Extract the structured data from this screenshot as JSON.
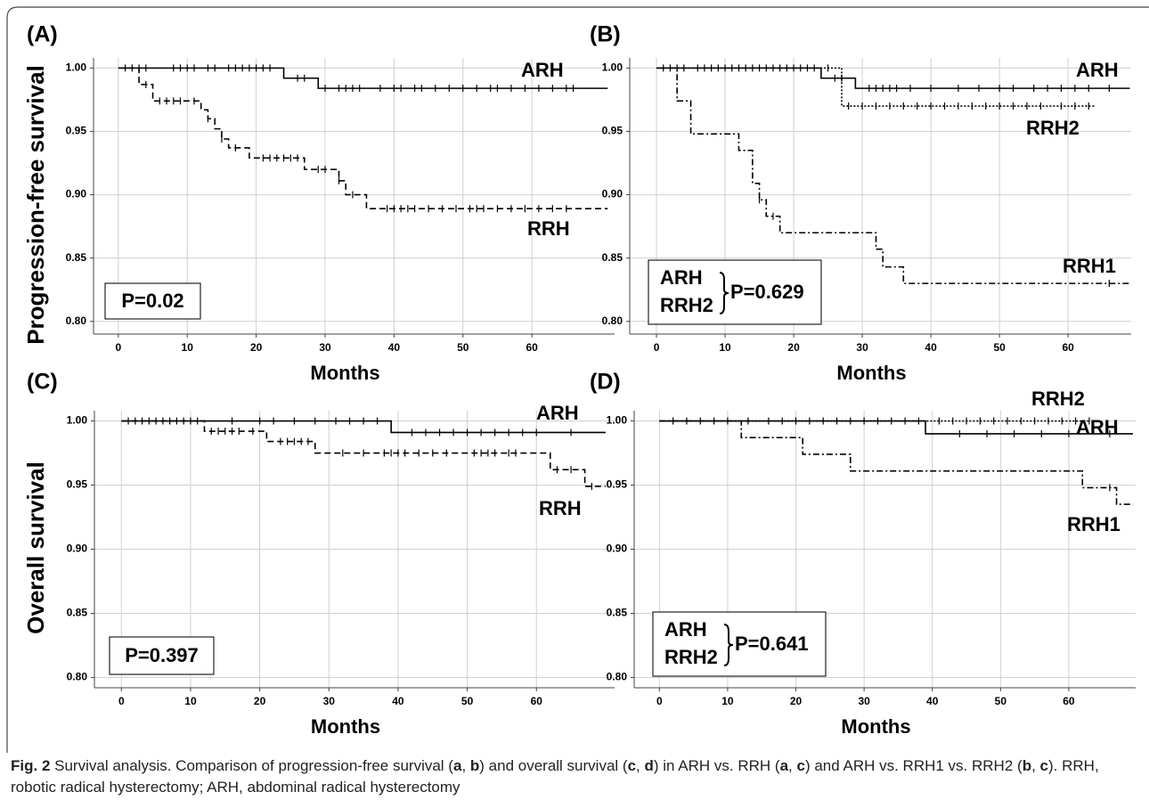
{
  "chart_data": [
    {
      "type": "step",
      "title": "(A)",
      "ylabel": "Progression-free survival",
      "xlabel": "Months",
      "xlim": [
        -3.6,
        72
      ],
      "ylim": [
        0.79,
        1.008
      ],
      "xticks": [
        0,
        10,
        20,
        30,
        40,
        50,
        60
      ],
      "yticks": [
        {
          "value": 0.8,
          "label": "0.80"
        },
        {
          "value": 0.85,
          "label": "0.85"
        },
        {
          "value": 0.9,
          "label": "0.90"
        },
        {
          "value": 0.95,
          "label": "0.95"
        },
        {
          "value": 1,
          "label": "1.00"
        }
      ],
      "grid": true,
      "series": [
        {
          "name": "ARH",
          "color": "#000000",
          "line_style": "solid",
          "x": [
            0,
            24,
            29,
            71
          ],
          "values": [
            1,
            0.992,
            0.984,
            0.984
          ],
          "censored": [
            1,
            2,
            3,
            4,
            8,
            9,
            10,
            11,
            13,
            14,
            16,
            17,
            18,
            19,
            20,
            21,
            22,
            26,
            27,
            30,
            32,
            33,
            34,
            35,
            38,
            40,
            41,
            43,
            44,
            46,
            48,
            50,
            52,
            54,
            55,
            57,
            59,
            61,
            63,
            65,
            66
          ]
        },
        {
          "name": "RRH",
          "color": "#000000",
          "line_style": "dashed",
          "x": [
            0,
            3,
            5,
            12,
            13,
            14,
            15,
            16,
            19,
            27,
            32,
            33,
            36,
            71
          ],
          "values": [
            1,
            0.987,
            0.974,
            0.967,
            0.96,
            0.952,
            0.944,
            0.937,
            0.929,
            0.92,
            0.911,
            0.9,
            0.889,
            0.889
          ],
          "censored": [
            4,
            6,
            7,
            8,
            9,
            11,
            13,
            15,
            17,
            21,
            22,
            23,
            24,
            25,
            26,
            29,
            30,
            32,
            34,
            39,
            40,
            41,
            42,
            43,
            45,
            47,
            49,
            51,
            52,
            53,
            55,
            57,
            59,
            61,
            63,
            65
          ]
        }
      ],
      "annotation": {
        "p": "P=0.02"
      }
    },
    {
      "type": "step",
      "title": "(B)",
      "xlabel": "Months",
      "xlim": [
        -3.9,
        69.2
      ],
      "ylim": [
        0.79,
        1.008
      ],
      "xticks": [
        0,
        10,
        20,
        30,
        40,
        50,
        60
      ],
      "yticks": [
        {
          "value": 0.8,
          "label": "0.80"
        },
        {
          "value": 0.85,
          "label": "0.85"
        },
        {
          "value": 0.9,
          "label": "0.90"
        },
        {
          "value": 0.95,
          "label": "0.95"
        },
        {
          "value": 1,
          "label": "1.00"
        }
      ],
      "grid": true,
      "series": [
        {
          "name": "ARH",
          "color": "#000000",
          "line_style": "solid",
          "x": [
            0,
            24,
            29,
            69
          ],
          "values": [
            1,
            0.992,
            0.984,
            0.984
          ],
          "censored": [
            1,
            2,
            3,
            4,
            6,
            7,
            8,
            9,
            10,
            11,
            12,
            13,
            14,
            15,
            16,
            17,
            18,
            19,
            20,
            21,
            22,
            26,
            27,
            31,
            32,
            33,
            34,
            35,
            37,
            40,
            44,
            47,
            50,
            52,
            55,
            57,
            59,
            61,
            63,
            66
          ]
        },
        {
          "name": "RRH2",
          "color": "#000000",
          "line_style": "dotted",
          "x": [
            0,
            27,
            64
          ],
          "values": [
            1,
            0.97,
            0.97
          ],
          "censored": [
            23,
            25,
            28,
            30,
            32,
            34,
            36,
            38,
            40,
            42,
            44,
            46,
            48,
            50,
            52,
            54,
            56,
            59,
            61,
            63
          ]
        },
        {
          "name": "RRH1",
          "color": "#000000",
          "line_style": "dashdot",
          "x": [
            0,
            3,
            5,
            12,
            14,
            15,
            16,
            18,
            32,
            33,
            36,
            69
          ],
          "values": [
            1,
            0.974,
            0.948,
            0.935,
            0.909,
            0.896,
            0.883,
            0.87,
            0.857,
            0.843,
            0.83,
            0.83
          ],
          "censored": [
            15,
            17,
            66
          ]
        }
      ],
      "annotation": {
        "groups": [
          "ARH",
          "RRH2"
        ],
        "p": "P=0.629"
      }
    },
    {
      "type": "step",
      "title": "(C)",
      "ylabel": "Overall survival",
      "xlabel": "Months",
      "xlim": [
        -3.9,
        71.3
      ],
      "ylim": [
        0.792,
        1.008
      ],
      "xticks": [
        0,
        10,
        20,
        30,
        40,
        50,
        60
      ],
      "yticks": [
        {
          "value": 0.8,
          "label": "0.80"
        },
        {
          "value": 0.85,
          "label": "0.85"
        },
        {
          "value": 0.9,
          "label": "0.90"
        },
        {
          "value": 0.95,
          "label": "0.95"
        },
        {
          "value": 1,
          "label": "1.00"
        }
      ],
      "grid": true,
      "series": [
        {
          "name": "ARH",
          "color": "#000000",
          "line_style": "solid",
          "x": [
            0,
            39,
            70
          ],
          "values": [
            1,
            0.991,
            0.991
          ],
          "censored": [
            1,
            2,
            3,
            4,
            5,
            6,
            7,
            8,
            9,
            10,
            11,
            16,
            20,
            22,
            25,
            28,
            31,
            33,
            35,
            37,
            42,
            44,
            46,
            48,
            50,
            52,
            54,
            56,
            58,
            60,
            65
          ]
        },
        {
          "name": "RRH",
          "color": "#000000",
          "line_style": "dashed",
          "x": [
            0,
            12,
            21,
            28,
            62,
            67,
            70
          ],
          "values": [
            1,
            0.992,
            0.984,
            0.975,
            0.962,
            0.949,
            0.949
          ],
          "censored": [
            13,
            14,
            15,
            16,
            17,
            19,
            23,
            24,
            25,
            26,
            27,
            32,
            35,
            38,
            39,
            40,
            41,
            43,
            45,
            47,
            51,
            52,
            53,
            54,
            56,
            57,
            63,
            65,
            68
          ]
        }
      ],
      "annotation": {
        "p": "P=0.397"
      }
    },
    {
      "type": "step",
      "title": "(D)",
      "xlabel": "Months",
      "xlim": [
        -3.7,
        69.8
      ],
      "ylim": [
        0.792,
        1.008
      ],
      "xticks": [
        0,
        10,
        20,
        30,
        40,
        50,
        60
      ],
      "yticks": [
        {
          "value": 0.8,
          "label": "0.80"
        },
        {
          "value": 0.85,
          "label": "0.85"
        },
        {
          "value": 0.9,
          "label": "0.90"
        },
        {
          "value": 0.95,
          "label": "0.95"
        },
        {
          "value": 1,
          "label": "1.00"
        }
      ],
      "grid": true,
      "series": [
        {
          "name": "RRH2",
          "color": "#000000",
          "line_style": "dotted",
          "x": [
            0,
            63
          ],
          "values": [
            1,
            1
          ],
          "censored": [
            41,
            43,
            45,
            47,
            49,
            51,
            53,
            55,
            57,
            59,
            61,
            63
          ]
        },
        {
          "name": "ARH",
          "color": "#000000",
          "line_style": "solid",
          "x": [
            0,
            39,
            69.4
          ],
          "values": [
            1,
            0.99,
            0.99
          ],
          "censored": [
            2,
            4,
            6,
            8,
            10,
            13,
            16,
            18,
            20,
            22,
            24,
            26,
            28,
            30,
            32,
            34,
            36,
            38,
            44,
            48,
            52,
            56,
            60,
            66
          ]
        },
        {
          "name": "RRH1",
          "color": "#000000",
          "line_style": "dashdot",
          "x": [
            0,
            12,
            21,
            28,
            62,
            67,
            69.4
          ],
          "values": [
            1,
            0.987,
            0.974,
            0.961,
            0.948,
            0.935,
            0.935
          ],
          "censored": [
            66
          ]
        }
      ],
      "annotation": {
        "groups": [
          "ARH",
          "RRH2"
        ],
        "p": "P=0.641"
      }
    }
  ],
  "caption": [
    {
      "text": "Fig. 2",
      "bold": true
    },
    {
      "text": " Survival analysis. Comparison of progression-free survival (",
      "bold": false
    },
    {
      "text": "a",
      "bold": true
    },
    {
      "text": ", ",
      "bold": false
    },
    {
      "text": "b",
      "bold": true
    },
    {
      "text": ") and overall survival (",
      "bold": false
    },
    {
      "text": "c",
      "bold": true
    },
    {
      "text": ", ",
      "bold": false
    },
    {
      "text": "d",
      "bold": true
    },
    {
      "text": ") in ARH vs. RRH (",
      "bold": false
    },
    {
      "text": "a",
      "bold": true
    },
    {
      "text": ", ",
      "bold": false
    },
    {
      "text": "c",
      "bold": true
    },
    {
      "text": ") and ARH vs. RRH1 vs. RRH2 (",
      "bold": false
    },
    {
      "text": "b",
      "bold": true
    },
    {
      "text": ", ",
      "bold": false
    },
    {
      "text": "c",
      "bold": true
    },
    {
      "text": "). RRH, robotic radical hysterectomy; ARH, abdominal radical hysterectomy",
      "bold": false
    }
  ]
}
